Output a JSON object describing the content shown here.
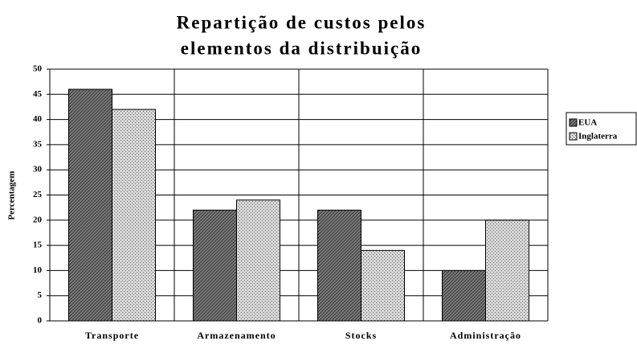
{
  "chart_data": {
    "type": "bar",
    "title": [
      "Repartição de custos pelos",
      "elementos da distribuição"
    ],
    "y_label": "Percentagem",
    "categories": [
      "Transporte",
      "Armazenamento",
      "Stocks",
      "Administração"
    ],
    "series": [
      {
        "name": "EUA",
        "color": "#7f7f7f",
        "values": [
          46,
          22,
          22,
          10
        ]
      },
      {
        "name": "Inglaterra",
        "color": "#d9d9d9",
        "values": [
          42,
          24,
          14,
          20
        ]
      }
    ],
    "ylim": [
      0,
      50
    ],
    "yticks": [
      0,
      5,
      10,
      15,
      20,
      25,
      30,
      35,
      40,
      45,
      50
    ],
    "grid": true,
    "legend": "right"
  }
}
